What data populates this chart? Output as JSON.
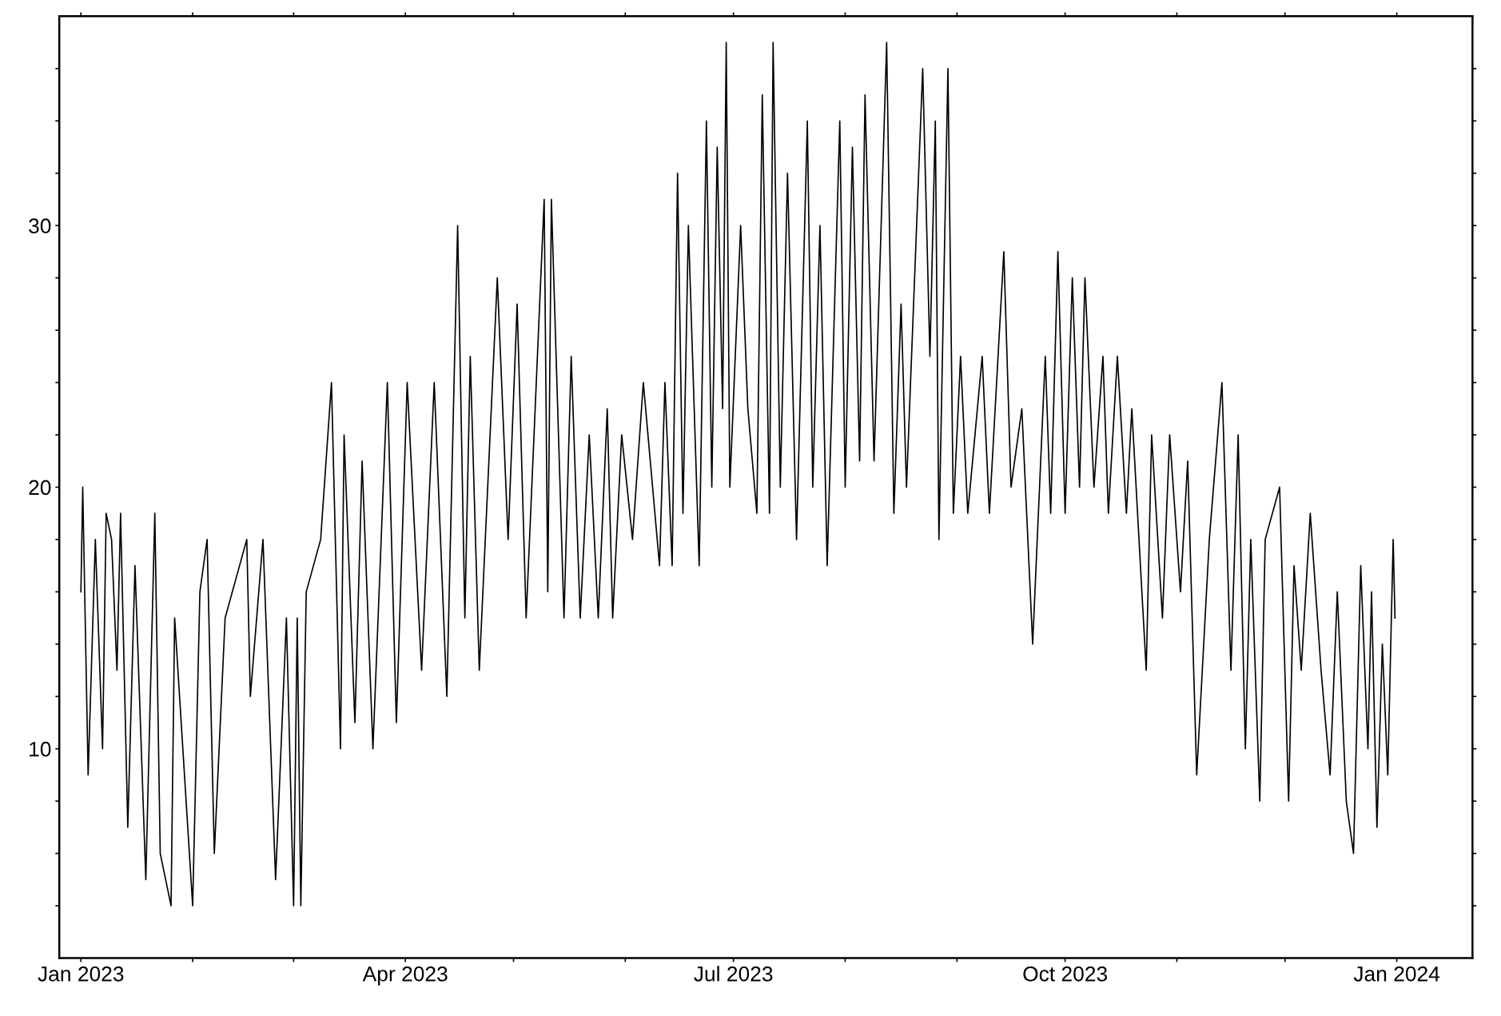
{
  "chart_data": {
    "type": "line",
    "color": "#000000",
    "marker": "none",
    "line_style": "solid",
    "grid": false,
    "legend": false,
    "xlim": [
      "2022-12-26",
      "2024-01-22"
    ],
    "ylim": [
      2,
      38
    ],
    "xticks": [
      {
        "value": "2023-01-01",
        "label": "Jan 2023"
      },
      {
        "value": "2023-02-01",
        "label": null
      },
      {
        "value": "2023-03-01",
        "label": null
      },
      {
        "value": "2023-04-01",
        "label": "Apr 2023"
      },
      {
        "value": "2023-05-01",
        "label": null
      },
      {
        "value": "2023-06-01",
        "label": null
      },
      {
        "value": "2023-07-01",
        "label": "Jul 2023"
      },
      {
        "value": "2023-08-01",
        "label": null
      },
      {
        "value": "2023-09-01",
        "label": null
      },
      {
        "value": "2023-10-01",
        "label": "Oct 2023"
      },
      {
        "value": "2023-11-01",
        "label": null
      },
      {
        "value": "2023-12-01",
        "label": null
      },
      {
        "value": "2024-01-01",
        "label": "Jan 2024"
      }
    ],
    "yticks": [
      {
        "value": 4,
        "label": null
      },
      {
        "value": 6,
        "label": null
      },
      {
        "value": 8,
        "label": null
      },
      10,
      {
        "value": 12,
        "label": null
      },
      {
        "value": 14,
        "label": null
      },
      {
        "value": 16,
        "label": null
      },
      {
        "value": 18,
        "label": null
      },
      20,
      {
        "value": 22,
        "label": null
      },
      {
        "value": 24,
        "label": null
      },
      {
        "value": 26,
        "label": null
      },
      {
        "value": 28,
        "label": null
      },
      30,
      {
        "value": 32,
        "label": null
      },
      {
        "value": 34,
        "label": null
      },
      {
        "value": 36,
        "label": null
      }
    ],
    "x": [
      "2023-01-01T00:00",
      "2023-01-01T12:00",
      "2023-01-03",
      "2023-01-05",
      "2023-01-07",
      "2023-01-08",
      "2023-01-09T12:00",
      "2023-01-11",
      "2023-01-12",
      "2023-01-14",
      "2023-01-16",
      "2023-01-19",
      "2023-01-21T12:00",
      "2023-01-23",
      "2023-01-26",
      "2023-01-27",
      "2023-02-01",
      "2023-02-03",
      "2023-02-05",
      "2023-02-07",
      "2023-02-10",
      "2023-02-16",
      "2023-02-17",
      "2023-02-20T12:00",
      "2023-02-24",
      "2023-02-27",
      "2023-03-01",
      "2023-03-02",
      "2023-03-03",
      "2023-03-04T12:00",
      "2023-03-08T12:00",
      "2023-03-11T12:00",
      "2023-03-14",
      "2023-03-15",
      "2023-03-18",
      "2023-03-20",
      "2023-03-23",
      "2023-03-27",
      "2023-03-29T12:00",
      "2023-04-01T12:00",
      "2023-04-05T12:00",
      "2023-04-09",
      "2023-04-12T12:00",
      "2023-04-15T12:00",
      "2023-04-17T12:00",
      "2023-04-19",
      "2023-04-21T12:00",
      "2023-04-26T12:00",
      "2023-04-29T12:00",
      "2023-05-02",
      "2023-05-04T12:00",
      "2023-05-09T12:00",
      "2023-05-10T12:00",
      "2023-05-11T12:00",
      "2023-05-15",
      "2023-05-17",
      "2023-05-19T12:00",
      "2023-05-22",
      "2023-05-24T12:00",
      "2023-05-27",
      "2023-05-28T12:00",
      "2023-05-31",
      "2023-06-03",
      "2023-06-06",
      "2023-06-10T12:00",
      "2023-06-12",
      "2023-06-14",
      "2023-06-15T12:00",
      "2023-06-17",
      "2023-06-18T12:00",
      "2023-06-21T12:00",
      "2023-06-23T12:00",
      "2023-06-25",
      "2023-06-26T12:00",
      "2023-06-28",
      "2023-06-29",
      "2023-06-30",
      "2023-07-03",
      "2023-07-05",
      "2023-07-07T12:00",
      "2023-07-09",
      "2023-07-11",
      "2023-07-12",
      "2023-07-14",
      "2023-07-16",
      "2023-07-18T12:00",
      "2023-07-21T12:00",
      "2023-07-23",
      "2023-07-25",
      "2023-07-27",
      "2023-07-30T12:00",
      "2023-08-01",
      "2023-08-03",
      "2023-08-05",
      "2023-08-06T12:00",
      "2023-08-09",
      "2023-08-12T12:00",
      "2023-08-14T12:00",
      "2023-08-16T12:00",
      "2023-08-18",
      "2023-08-22T12:00",
      "2023-08-24T12:00",
      "2023-08-26",
      "2023-08-27",
      "2023-08-29T12:00",
      "2023-08-31",
      "2023-09-02",
      "2023-09-04",
      "2023-09-08",
      "2023-09-10",
      "2023-09-12",
      "2023-09-14",
      "2023-09-16",
      "2023-09-19",
      "2023-09-22",
      "2023-09-25T12:00",
      "2023-09-27",
      "2023-09-29",
      "2023-10-01",
      "2023-10-03",
      "2023-10-05",
      "2023-10-06T12:00",
      "2023-10-09",
      "2023-10-11T12:00",
      "2023-10-13",
      "2023-10-15T12:00",
      "2023-10-18",
      "2023-10-19T12:00",
      "2023-10-23T12:00",
      "2023-10-25",
      "2023-10-28",
      "2023-10-30",
      "2023-11-02",
      "2023-11-04",
      "2023-11-06T12:00",
      "2023-11-10",
      "2023-11-13T12:00",
      "2023-11-16",
      "2023-11-18",
      "2023-11-20",
      "2023-11-21T12:00",
      "2023-11-24",
      "2023-11-25T12:00",
      "2023-11-29T12:00",
      "2023-12-02",
      "2023-12-03T12:00",
      "2023-12-05T12:00",
      "2023-12-08",
      "2023-12-11",
      "2023-12-13T12:00",
      "2023-12-15T12:00",
      "2023-12-18",
      "2023-12-20",
      "2023-12-22",
      "2023-12-24",
      "2023-12-25",
      "2023-12-26T12:00",
      "2023-12-28",
      "2023-12-29T12:00",
      "2023-12-31",
      "2023-12-31T12:00"
    ],
    "values": [
      16,
      20,
      9,
      18,
      10,
      19,
      18,
      13,
      19,
      7,
      17,
      5,
      19,
      6,
      4,
      15,
      4,
      16,
      18,
      6,
      15,
      18,
      12,
      18,
      5,
      15,
      4,
      15,
      4,
      16,
      18,
      24,
      10,
      22,
      11,
      21,
      10,
      24,
      11,
      24,
      13,
      24,
      12,
      30,
      15,
      25,
      13,
      28,
      18,
      27,
      15,
      31,
      16,
      31,
      15,
      25,
      15,
      22,
      15,
      23,
      15,
      22,
      18,
      24,
      17,
      24,
      17,
      32,
      19,
      30,
      17,
      34,
      20,
      33,
      23,
      37,
      20,
      30,
      23,
      19,
      35,
      19,
      37,
      20,
      32,
      18,
      34,
      20,
      30,
      17,
      34,
      20,
      33,
      21,
      35,
      21,
      37,
      19,
      27,
      20,
      36,
      25,
      34,
      18,
      36,
      19,
      25,
      19,
      25,
      19,
      24,
      29,
      20,
      23,
      14,
      25,
      19,
      29,
      19,
      28,
      20,
      28,
      20,
      25,
      19,
      25,
      19,
      23,
      13,
      22,
      15,
      22,
      16,
      21,
      9,
      18,
      24,
      13,
      22,
      10,
      18,
      8,
      18,
      20,
      8,
      17,
      13,
      19,
      13,
      9,
      16,
      8,
      6,
      17,
      10,
      16,
      7,
      14,
      9,
      18,
      15
    ]
  }
}
